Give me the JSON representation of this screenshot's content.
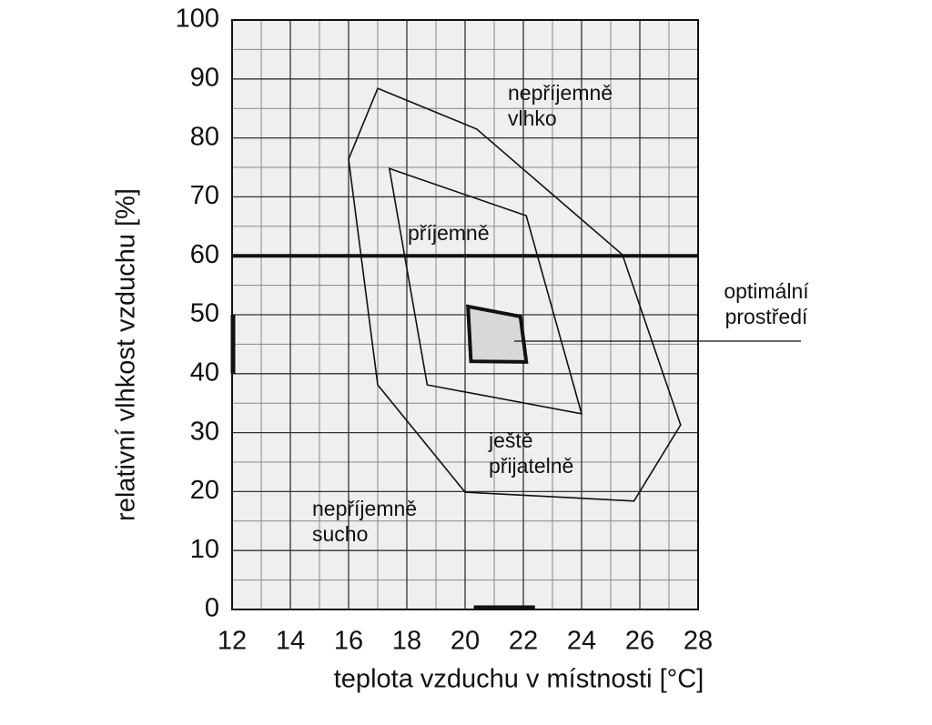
{
  "chart_data": {
    "type": "polygon",
    "xlabel": "teplota vzduchu v místnosti [°C]",
    "ylabel": "relativní vlhkost vzduchu [%]",
    "xlim": [
      12,
      28
    ],
    "xticks": [
      12,
      14,
      16,
      18,
      20,
      22,
      24,
      26,
      28
    ],
    "ylim": [
      0,
      100
    ],
    "yticks": [
      0,
      10,
      20,
      30,
      40,
      50,
      60,
      70,
      80,
      90,
      100
    ],
    "grid": true,
    "series": [
      {
        "color": "#111111",
        "x": [
          17.0,
          20.4,
          25.4,
          27.4,
          25.8,
          20.0,
          17.0,
          16.0
        ],
        "values": [
          88.4,
          81.5,
          60.2,
          31.3,
          18.4,
          19.9,
          38.1,
          76.4
        ]
      },
      {
        "color": "#111111",
        "x": [
          17.4,
          22.1,
          24.0,
          18.7
        ],
        "values": [
          74.8,
          66.8,
          33.2,
          38.1
        ]
      },
      {
        "color": "#111111",
        "fill": "#d8d8d8",
        "x": [
          20.1,
          21.9,
          22.1,
          20.2
        ],
        "values": [
          51.4,
          49.7,
          42.0,
          42.1
        ]
      }
    ],
    "threshold": 60,
    "optimal_x_range": [
      20.3,
      22.4
    ],
    "optimal_y_range": [
      40,
      50
    ],
    "annotations": [
      {
        "lines": [
          "nepříjemně",
          "vlhko"
        ]
      },
      {
        "lines": [
          "příjemně"
        ]
      },
      {
        "lines": [
          "optimální",
          "prostředí"
        ]
      },
      {
        "lines": [
          "ještě",
          "přijatelně"
        ]
      },
      {
        "lines": [
          "nepříjemně",
          "sucho"
        ]
      }
    ]
  }
}
